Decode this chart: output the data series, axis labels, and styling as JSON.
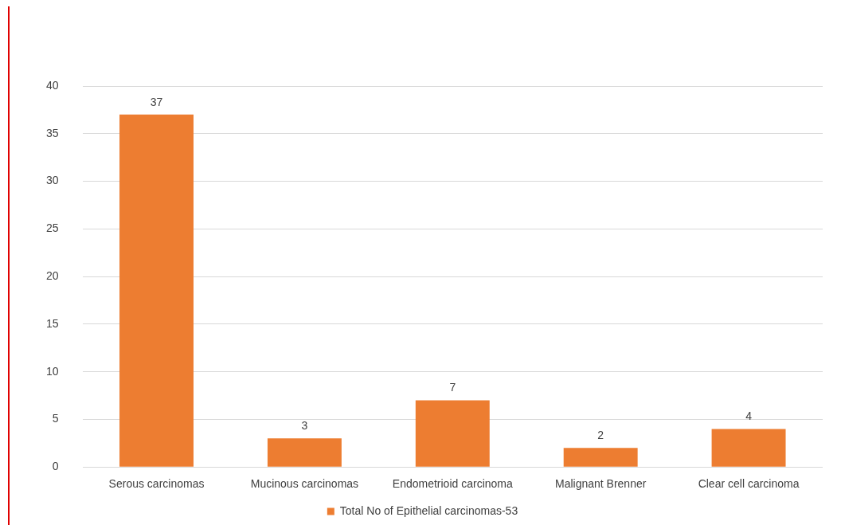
{
  "chart_data": {
    "type": "bar",
    "categories": [
      "Serous carcinomas",
      "Mucinous carcinomas",
      "Endometrioid carcinoma",
      "Malignant Brenner",
      "Clear cell carcinoma"
    ],
    "series": [
      {
        "name": "Total No of Epithelial carcinomas-53",
        "color": "#ed7d31",
        "values": [
          37,
          3,
          7,
          2,
          4
        ]
      }
    ],
    "ylim": [
      0,
      40
    ],
    "yticks": [
      0,
      5,
      10,
      15,
      20,
      25,
      30,
      35,
      40
    ],
    "grid": "y",
    "legend": "bottom",
    "data_labels": true
  }
}
